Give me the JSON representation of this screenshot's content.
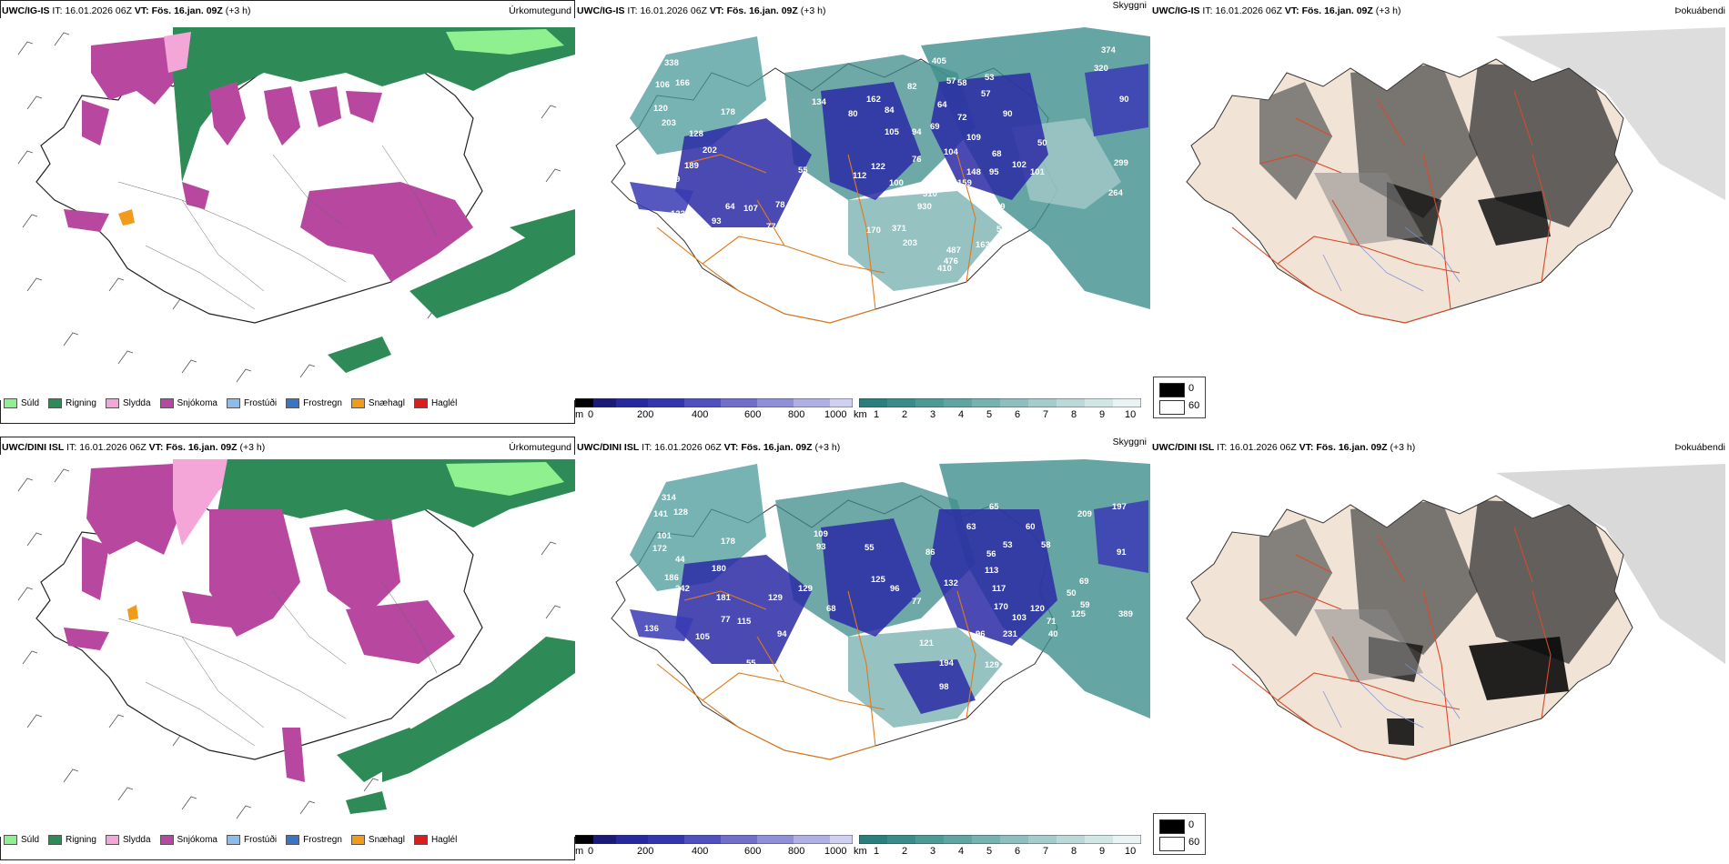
{
  "rows": [
    {
      "model": "UWC/IG-IS",
      "init_label": "IT:",
      "init_time": "16.01.2026 06Z",
      "valid_label": "VT:",
      "valid_time": "Fös. 16.jan. 09Z",
      "lead": "(+3 h)"
    },
    {
      "model": "UWC/DINI ISL",
      "init_label": "IT:",
      "init_time": "16.01.2026 06Z",
      "valid_label": "VT:",
      "valid_time": "Fös. 16.jan. 09Z",
      "lead": "(+3 h)"
    }
  ],
  "panels": {
    "precip_type": "Úrkomutegund",
    "cloud": "Skyggni",
    "fog": "Þokuábendi"
  },
  "precip_legend": [
    {
      "label": "Súld",
      "color": "#8ef08e"
    },
    {
      "label": "Rigning",
      "color": "#2e8b57"
    },
    {
      "label": "Slydda",
      "color": "#f4a6d8"
    },
    {
      "label": "Snjókoma",
      "color": "#b8479f"
    },
    {
      "label": "Frostúði",
      "color": "#8fbce6"
    },
    {
      "label": "Frostregn",
      "color": "#3a74c4"
    },
    {
      "label": "Snæhagl",
      "color": "#f29a1a"
    },
    {
      "label": "Haglél",
      "color": "#e01b1b"
    }
  ],
  "ceiling_bar": {
    "unit": "m",
    "ticks": [
      "0",
      "200",
      "400",
      "600",
      "800",
      "1000"
    ]
  },
  "visibility_bar": {
    "unit": "km",
    "ticks": [
      "1",
      "2",
      "3",
      "4",
      "5",
      "6",
      "7",
      "8",
      "9",
      "10"
    ]
  },
  "fog_legend": [
    {
      "label": "0",
      "color": "#000000"
    },
    {
      "label": "60",
      "color": "#ffffff"
    }
  ],
  "cloud_labels_top": [
    "338",
    "106",
    "166",
    "120",
    "203",
    "128",
    "178",
    "202",
    "189",
    "119",
    "123",
    "138",
    "93",
    "64",
    "107",
    "78",
    "93",
    "81",
    "77",
    "55",
    "134",
    "80",
    "162",
    "84",
    "82",
    "57",
    "58",
    "53",
    "64",
    "57",
    "90",
    "94",
    "72",
    "69",
    "105",
    "109",
    "104",
    "102",
    "148",
    "76",
    "68",
    "100",
    "112",
    "122",
    "170",
    "371",
    "310",
    "930",
    "159",
    "102",
    "95",
    "101",
    "50",
    "49",
    "588",
    "203",
    "163",
    "410",
    "201",
    "405",
    "374",
    "320",
    "90",
    "299",
    "264",
    "487",
    "476"
  ],
  "cloud_labels_bottom": [
    "314",
    "141",
    "128",
    "101",
    "172",
    "44",
    "178",
    "242",
    "186",
    "180",
    "129",
    "181",
    "115",
    "77",
    "136",
    "105",
    "94",
    "55",
    "59",
    "129",
    "109",
    "93",
    "55",
    "125",
    "104",
    "68",
    "96",
    "77",
    "121",
    "194",
    "98",
    "129",
    "231",
    "86",
    "63",
    "65",
    "60",
    "56",
    "58",
    "53",
    "113",
    "117",
    "170",
    "103",
    "132",
    "120",
    "96",
    "71",
    "40",
    "59",
    "50",
    "69",
    "209",
    "197",
    "91",
    "389",
    "125"
  ]
}
